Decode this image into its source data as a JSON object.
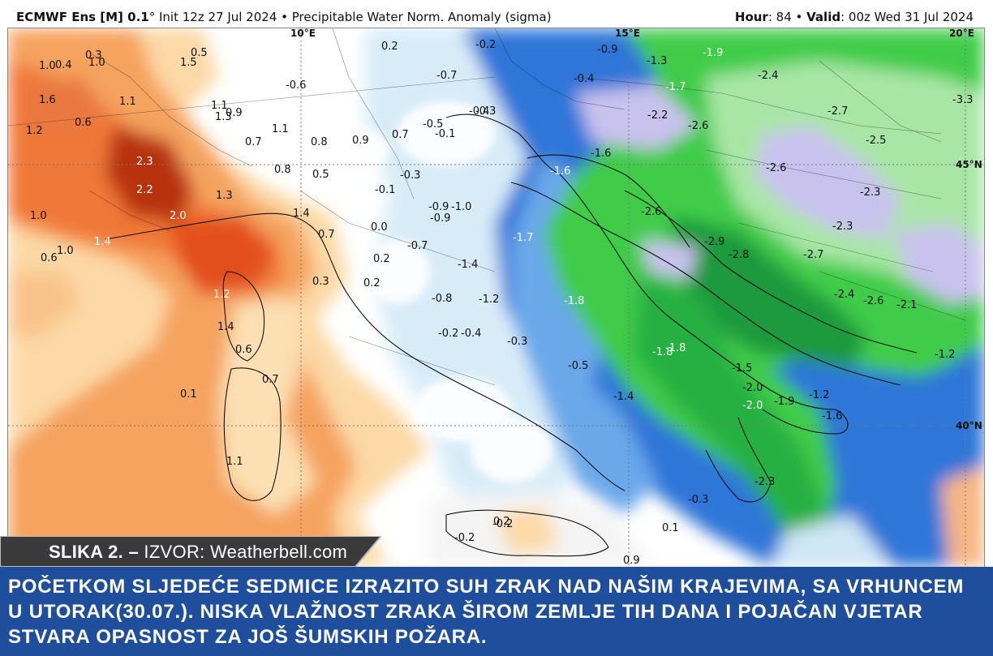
{
  "header": {
    "model": "ECMWF Ens [M] 0.1",
    "init": "° Init 12z 27 Jul 2024",
    "sep": " • ",
    "field": "Precipitable Water Norm. Anomaly (sigma)",
    "hour_label": "Hour",
    "hour_value": ": 84",
    "valid_label": "Valid",
    "valid_value": ": 00z Wed 31 Jul 2024"
  },
  "map": {
    "coords": [
      "10°E",
      "15°E",
      "20°E",
      "45°N",
      "40°N"
    ],
    "labels": [
      "1.0",
      "0.3",
      "1.0",
      "0.4",
      "0.5",
      "1.5",
      "1.6",
      "1.1",
      "0.6",
      "1.2",
      "1.1",
      "1.3",
      "0.9",
      "1.1",
      "0.7",
      "0.8",
      "0.9",
      "0.7",
      "2.3",
      "0.8",
      "0.5",
      "2.2",
      "2.0",
      "1.3",
      "1.4",
      "1.0",
      "1.4",
      "0.6",
      "1.0",
      "0.7",
      "0.3",
      "0.2",
      "1.2",
      "1.4",
      "0.6",
      "0.1",
      "0.7",
      "1.1",
      "0.2",
      "-0.6",
      "0.0",
      "-0.9",
      "-0.5",
      "-0.3",
      "-0.1",
      "-0.2",
      "-0.7",
      "-0.1",
      "-0.8",
      "0.2",
      "-0.7",
      "-0.4",
      "-0.3",
      "-0.9",
      "-0.2",
      "-0.4",
      "-0.3",
      "-0.5",
      "-1.0",
      "-1.3",
      "-0.4",
      "-0.9",
      "-1.7",
      "-2.2",
      "-1.6",
      "-1.6",
      "-1.7",
      "-1.4",
      "-1.2",
      "-1.8",
      "-1.8",
      "-1.8",
      "-1.5",
      "-1.4",
      "-2.0",
      "-2.0",
      "-1.9",
      "-1.2",
      "-1.6",
      "-2.3",
      "-0.3",
      "0.1",
      "-0.2",
      "0.9",
      "-0.2",
      "0.2",
      "-1.9",
      "-2.4",
      "-2.7",
      "-2.6",
      "-2.5",
      "-3.3",
      "-2.6",
      "-2.3",
      "-2.6",
      "-2.9",
      "-2.8",
      "-2.7",
      "-2.3",
      "-2.4",
      "-2.6",
      "-2.1",
      "-1.2"
    ]
  },
  "credit": {
    "prefix": "SLIKA 2. – ",
    "source": "IZVOR: Weatherbell.com"
  },
  "caption": {
    "text": "POČETKOM SLJEDEĆE SEDMICE IZRAZITO SUH ZRAK NAD NAŠIM KRAJEVIMA, SA VRHUNCEM U UTORAK(30.07.). NISKA VLAŽNOST ZRAKA ŠIROM ZEMLJE TIH DANA I POJAČAN VJETAR STVARA OPASNOST ZA JOŠ ŠUMSKIH POŽARA."
  },
  "colors": {
    "positive_strong": "#b8300a",
    "positive": "#f07838",
    "positive_light": "#fcd9a6",
    "neutral": "#ffffff",
    "negative_light": "#cfe6f5",
    "negative": "#2e76d8",
    "negative_strong": "#1f9a3e",
    "negative_green": "#3fcc4a",
    "negative_lavender": "#c9c2ee",
    "caption_bg": "#1f4e9c"
  }
}
